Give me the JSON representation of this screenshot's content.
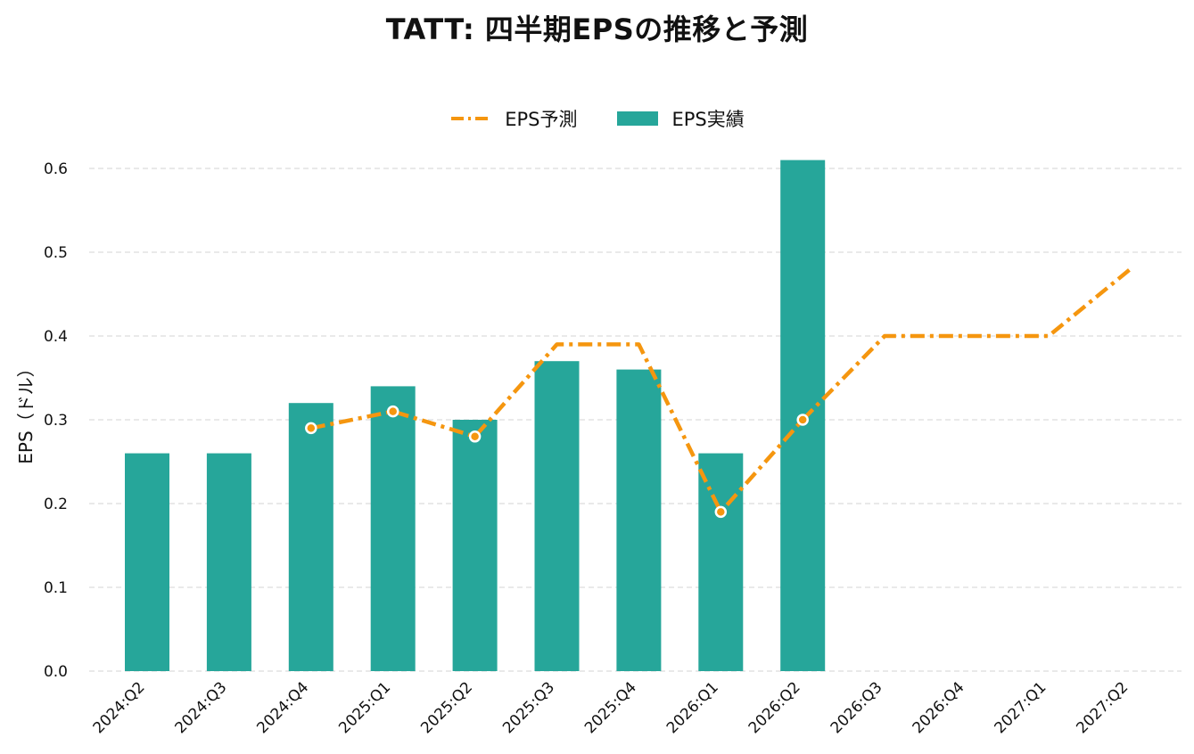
{
  "chart_data": {
    "type": "bar",
    "title": "TATT: 四半期EPSの推移と予測",
    "xlabel": "",
    "ylabel": "EPS（ドル）",
    "categories": [
      "2024:Q2",
      "2024:Q3",
      "2024:Q4",
      "2025:Q1",
      "2025:Q2",
      "2025:Q3",
      "2025:Q4",
      "2026:Q1",
      "2026:Q2",
      "2026:Q3",
      "2026:Q4",
      "2027:Q1",
      "2027:Q2"
    ],
    "ylim": [
      0,
      0.62
    ],
    "yticks": [
      "0.0",
      "0.1",
      "0.2",
      "0.3",
      "0.4",
      "0.5",
      "0.6"
    ],
    "grid": "horizontal dashed",
    "legend_position": "top-center",
    "series": [
      {
        "name": "EPS予測",
        "kind": "line",
        "style": "dash-dot",
        "color": "#F5960F",
        "values": [
          null,
          null,
          0.29,
          0.31,
          0.28,
          0.39,
          0.39,
          0.19,
          0.3,
          0.4,
          0.4,
          0.4,
          0.48
        ],
        "markers": [
          false,
          false,
          true,
          true,
          true,
          false,
          false,
          true,
          true,
          false,
          false,
          false,
          false
        ]
      },
      {
        "name": "EPS実績",
        "kind": "bar",
        "color": "#26A69A",
        "values": [
          0.26,
          0.26,
          0.32,
          0.34,
          0.3,
          0.37,
          0.36,
          0.26,
          0.61,
          null,
          null,
          null,
          null
        ]
      }
    ]
  }
}
